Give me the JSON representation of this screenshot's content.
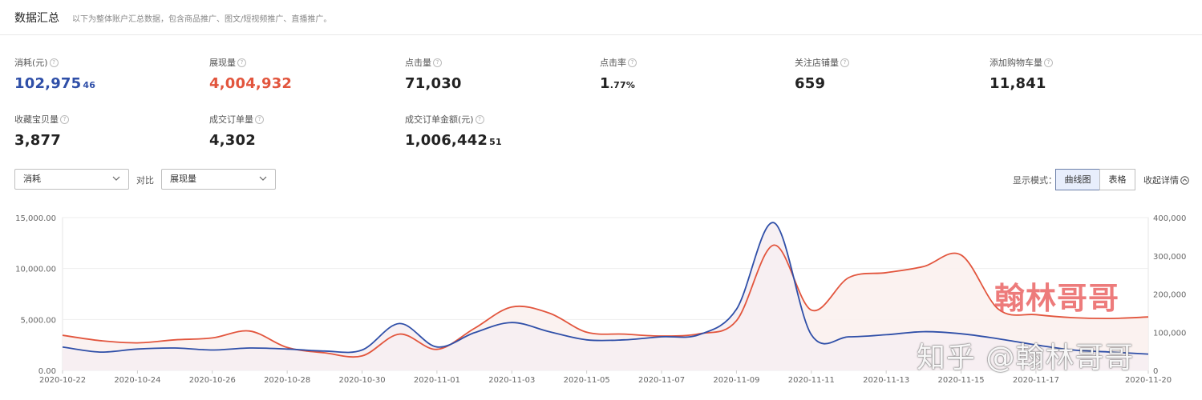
{
  "header": {
    "title": "数据汇总",
    "subtitle": "以下为整体账户汇总数据，包含商品推广、图文/短视频推广、直播推广。"
  },
  "metrics": [
    {
      "label": "消耗(元)",
      "int": "102,975",
      "dec": "46",
      "color": "blue"
    },
    {
      "label": "展现量",
      "int": "4,004,932",
      "dec": "",
      "color": "red"
    },
    {
      "label": "点击量",
      "int": "71,030",
      "dec": "",
      "color": "black"
    },
    {
      "label": "点击率",
      "int": "1",
      "dec": ".77%",
      "color": "black"
    },
    {
      "label": "关注店铺量",
      "int": "659",
      "dec": "",
      "color": "black"
    },
    {
      "label": "添加购物车量",
      "int": "11,841",
      "dec": "",
      "color": "black"
    },
    {
      "label": "收藏宝贝量",
      "int": "3,877",
      "dec": "",
      "color": "black"
    },
    {
      "label": "成交订单量",
      "int": "4,302",
      "dec": "",
      "color": "black"
    },
    {
      "label": "成交订单金额(元)",
      "int": "1,006,442",
      "dec": "51",
      "color": "black"
    }
  ],
  "controls": {
    "primary_select": "消耗",
    "compare_label": "对比",
    "compare_select": "展现量",
    "mode_label": "显示模式：",
    "mode_curve": "曲线图",
    "mode_table": "表格",
    "collapse": "收起详情"
  },
  "colors": {
    "blue": "#2f4fa8",
    "red": "#e2553d",
    "fill": "#f6eef2"
  },
  "watermarks": {
    "author": "翰林哥哥",
    "platform": "知乎 @翰林哥哥"
  },
  "chart_data": {
    "type": "line",
    "x": [
      "2020-10-22",
      "2020-10-23",
      "2020-10-24",
      "2020-10-25",
      "2020-10-26",
      "2020-10-27",
      "2020-10-28",
      "2020-10-29",
      "2020-10-30",
      "2020-10-31",
      "2020-11-01",
      "2020-11-02",
      "2020-11-03",
      "2020-11-04",
      "2020-11-05",
      "2020-11-06",
      "2020-11-07",
      "2020-11-08",
      "2020-11-09",
      "2020-11-10",
      "2020-11-11",
      "2020-11-12",
      "2020-11-13",
      "2020-11-14",
      "2020-11-15",
      "2020-11-16",
      "2020-11-17",
      "2020-11-18",
      "2020-11-19",
      "2020-11-20"
    ],
    "x_tick_labels": [
      "2020-10-22",
      "2020-10-24",
      "2020-10-26",
      "2020-10-28",
      "2020-10-30",
      "2020-11-01",
      "2020-11-03",
      "2020-11-05",
      "2020-11-07",
      "2020-11-09",
      "2020-11-11",
      "2020-11-13",
      "2020-11-15",
      "2020-11-17",
      "2020-11-20"
    ],
    "series": [
      {
        "name": "消耗",
        "axis": "left",
        "color": "#2f4fa8",
        "values": [
          2300,
          1800,
          2100,
          2200,
          2000,
          2200,
          2100,
          1900,
          2000,
          4600,
          2300,
          3700,
          4700,
          3800,
          3000,
          3000,
          3300,
          3500,
          6000,
          14500,
          3500,
          3300,
          3500,
          3800,
          3600,
          3100,
          2500,
          2000,
          1800,
          1600
        ]
      },
      {
        "name": "展现量",
        "axis": "right",
        "color": "#e2553d",
        "values": [
          92000,
          78000,
          72000,
          80000,
          85000,
          103000,
          60000,
          46000,
          38000,
          95000,
          55000,
          110000,
          166000,
          150000,
          100000,
          95000,
          90000,
          96000,
          130000,
          328000,
          158000,
          243000,
          256000,
          272000,
          302000,
          160000,
          146000,
          138000,
          136000,
          140000
        ]
      }
    ],
    "y_left": {
      "ticks": [
        "15,000.00",
        "10,000.00",
        "5,000.00",
        "0.00"
      ],
      "range": [
        0,
        15000
      ]
    },
    "y_right": {
      "ticks": [
        "400,000",
        "300,000",
        "200,000",
        "100,000",
        "0"
      ],
      "range": [
        0,
        400000
      ]
    },
    "grid": true
  }
}
